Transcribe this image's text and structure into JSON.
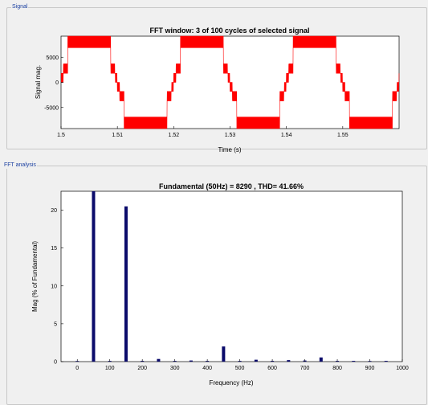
{
  "panels": {
    "signal_label": "Signal",
    "fft_label": "FFT analysis"
  },
  "chart_data": [
    {
      "type": "line",
      "title": "FFT window: 3 of 100 cycles of selected signal",
      "xlabel": "Time (s)",
      "ylabel": "Signal mag.",
      "xlim": [
        1.5,
        1.56
      ],
      "ylim": [
        -9200,
        9200
      ],
      "xticks": [
        1.5,
        1.51,
        1.52,
        1.53,
        1.54,
        1.55
      ],
      "xtick_labels": [
        "1.5",
        "1.51",
        "1.52",
        "1.53",
        "1.54",
        "1.55"
      ],
      "yticks": [
        -5000,
        0,
        5000
      ],
      "ytick_labels": [
        "-5000",
        "0",
        "5000"
      ],
      "fundamental_hz": 50,
      "level_high": 9200,
      "level_mid": 6900,
      "level_low": 3700,
      "mid_low": 1800,
      "series_color": "#ff0000"
    },
    {
      "type": "bar",
      "title": "Fundamental (50Hz) = 8290 , THD= 41.66%",
      "xlabel": "Frequency (Hz)",
      "ylabel": "Mag (% of Fundamental)",
      "xlim": [
        -50,
        1000
      ],
      "ylim": [
        0,
        22.5
      ],
      "xticks": [
        0,
        100,
        200,
        300,
        400,
        500,
        600,
        700,
        800,
        900,
        1000
      ],
      "xtick_labels": [
        "0",
        "100",
        "200",
        "300",
        "400",
        "500",
        "600",
        "700",
        "800",
        "900",
        "1000"
      ],
      "yticks": [
        0,
        5,
        10,
        15,
        20
      ],
      "ytick_labels": [
        "0",
        "5",
        "10",
        "15",
        "20"
      ],
      "bar_color": "#0b0b6b",
      "frequencies": [
        0,
        50,
        100,
        150,
        200,
        250,
        300,
        350,
        400,
        450,
        500,
        550,
        600,
        650,
        700,
        750,
        800,
        850,
        900,
        950
      ],
      "values": [
        0.05,
        22.5,
        0.1,
        20.5,
        0.1,
        0.35,
        0.1,
        0.15,
        0.1,
        2.0,
        0.1,
        0.25,
        0.1,
        0.2,
        0.15,
        0.55,
        0.1,
        0.1,
        0.05,
        0.1
      ]
    }
  ]
}
